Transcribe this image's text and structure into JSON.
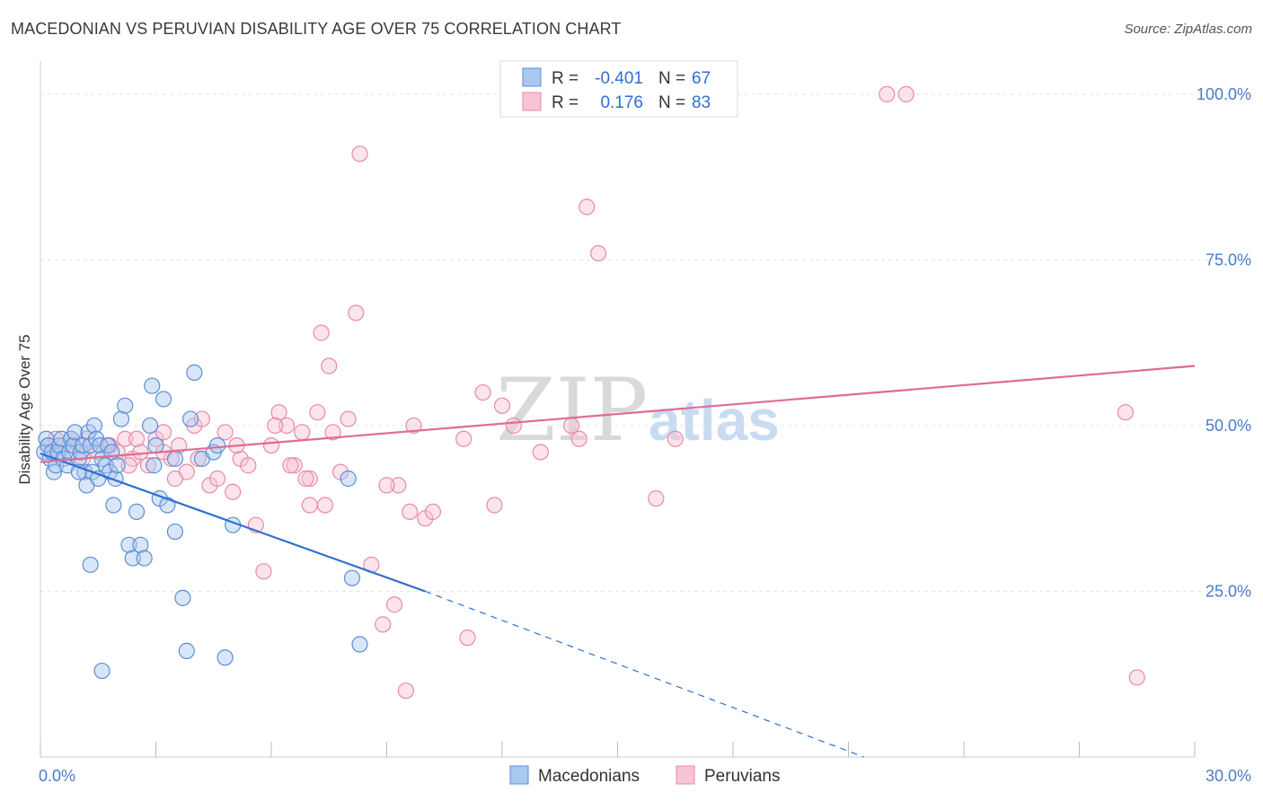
{
  "header": {
    "title": "MACEDONIAN VS PERUVIAN DISABILITY AGE OVER 75 CORRELATION CHART",
    "source": "Source: ZipAtlas.com"
  },
  "legend_box": {
    "rows": [
      {
        "r_label": "R =",
        "r_value": "-0.401",
        "n_label": "N =",
        "n_value": "67"
      },
      {
        "r_label": "R =",
        "r_value": "0.176",
        "n_label": "N =",
        "n_value": "83"
      }
    ]
  },
  "watermark": {
    "zip": "ZIP",
    "atlas": "atlas"
  },
  "colors": {
    "macedonian_fill": "#a9c8f0",
    "macedonian_stroke": "#5b8fd8",
    "macedonian_line": "#2e6fd1",
    "peruvian_fill": "#f7c4d4",
    "peruvian_stroke": "#e88aa8",
    "peruvian_line": "#e06b93",
    "tick_text": "#4a7cc7",
    "grid": "#e4e4e4"
  },
  "chart_data": {
    "type": "scatter",
    "title": "MACEDONIAN VS PERUVIAN DISABILITY AGE OVER 75 CORRELATION CHART",
    "xlabel": "",
    "ylabel": "Disability Age Over 75",
    "xlim": [
      0,
      30
    ],
    "ylim": [
      0,
      105
    ],
    "x_tick_labels": [
      "0.0%",
      "30.0%"
    ],
    "y_ticks": [
      25,
      50,
      75,
      100
    ],
    "y_tick_labels": [
      "25.0%",
      "50.0%",
      "75.0%",
      "100.0%"
    ],
    "grid": true,
    "legend_position": "bottom",
    "series": [
      {
        "name": "Macedonians",
        "points": [
          [
            0.1,
            46
          ],
          [
            0.15,
            48
          ],
          [
            0.2,
            47
          ],
          [
            0.25,
            45
          ],
          [
            0.3,
            46
          ],
          [
            0.35,
            43
          ],
          [
            0.4,
            44
          ],
          [
            0.45,
            46
          ],
          [
            0.5,
            47
          ],
          [
            0.55,
            48
          ],
          [
            0.6,
            45
          ],
          [
            0.7,
            44
          ],
          [
            0.75,
            46
          ],
          [
            0.8,
            48
          ],
          [
            0.85,
            47
          ],
          [
            0.9,
            49
          ],
          [
            1.0,
            45
          ],
          [
            1.05,
            46
          ],
          [
            1.1,
            47
          ],
          [
            1.15,
            43
          ],
          [
            1.2,
            41
          ],
          [
            1.25,
            49
          ],
          [
            1.3,
            47
          ],
          [
            1.35,
            43
          ],
          [
            1.4,
            50
          ],
          [
            1.45,
            48
          ],
          [
            1.5,
            42
          ],
          [
            1.55,
            47
          ],
          [
            1.6,
            45
          ],
          [
            1.7,
            44
          ],
          [
            1.75,
            47
          ],
          [
            1.8,
            43
          ],
          [
            1.85,
            46
          ],
          [
            1.9,
            38
          ],
          [
            1.95,
            42
          ],
          [
            2.0,
            44
          ],
          [
            2.1,
            51
          ],
          [
            2.2,
            53
          ],
          [
            2.3,
            32
          ],
          [
            2.4,
            30
          ],
          [
            2.5,
            37
          ],
          [
            2.6,
            32
          ],
          [
            2.7,
            30
          ],
          [
            2.85,
            50
          ],
          [
            2.9,
            56
          ],
          [
            2.95,
            44
          ],
          [
            3.0,
            47
          ],
          [
            3.1,
            39
          ],
          [
            3.2,
            54
          ],
          [
            3.3,
            38
          ],
          [
            3.5,
            34
          ],
          [
            3.7,
            24
          ],
          [
            3.8,
            16
          ],
          [
            3.9,
            51
          ],
          [
            4.0,
            58
          ],
          [
            4.2,
            45
          ],
          [
            4.5,
            46
          ],
          [
            4.6,
            47
          ],
          [
            4.8,
            15
          ],
          [
            5.0,
            35
          ],
          [
            1.0,
            43
          ],
          [
            1.6,
            13
          ],
          [
            1.3,
            29
          ],
          [
            8.0,
            42
          ],
          [
            8.1,
            27
          ],
          [
            8.3,
            17
          ],
          [
            3.5,
            45
          ]
        ]
      },
      {
        "name": "Peruvians",
        "points": [
          [
            0.2,
            47
          ],
          [
            0.4,
            48
          ],
          [
            0.6,
            47
          ],
          [
            0.8,
            48
          ],
          [
            1.0,
            47
          ],
          [
            1.2,
            48
          ],
          [
            1.5,
            46
          ],
          [
            1.8,
            47
          ],
          [
            2.0,
            46
          ],
          [
            2.2,
            48
          ],
          [
            2.4,
            45
          ],
          [
            2.6,
            46
          ],
          [
            2.8,
            44
          ],
          [
            3.0,
            48
          ],
          [
            3.2,
            49
          ],
          [
            3.4,
            45
          ],
          [
            3.6,
            47
          ],
          [
            3.8,
            43
          ],
          [
            4.0,
            50
          ],
          [
            4.2,
            51
          ],
          [
            4.4,
            41
          ],
          [
            4.6,
            42
          ],
          [
            4.8,
            49
          ],
          [
            5.0,
            40
          ],
          [
            5.2,
            45
          ],
          [
            5.4,
            44
          ],
          [
            5.6,
            35
          ],
          [
            5.8,
            28
          ],
          [
            6.0,
            47
          ],
          [
            6.2,
            52
          ],
          [
            6.4,
            50
          ],
          [
            6.6,
            44
          ],
          [
            6.8,
            49
          ],
          [
            7.0,
            42
          ],
          [
            7.2,
            52
          ],
          [
            7.4,
            38
          ],
          [
            7.6,
            49
          ],
          [
            7.8,
            43
          ],
          [
            8.0,
            51
          ],
          [
            7.5,
            59
          ],
          [
            7.3,
            64
          ],
          [
            8.2,
            67
          ],
          [
            8.3,
            91
          ],
          [
            8.6,
            29
          ],
          [
            8.9,
            20
          ],
          [
            9.2,
            23
          ],
          [
            9.6,
            37
          ],
          [
            10.0,
            36
          ],
          [
            9.3,
            41
          ],
          [
            9.5,
            10
          ],
          [
            9.7,
            50
          ],
          [
            11.0,
            48
          ],
          [
            11.5,
            55
          ],
          [
            11.8,
            38
          ],
          [
            12.0,
            53
          ],
          [
            13.0,
            46
          ],
          [
            13.8,
            50
          ],
          [
            14.0,
            48
          ],
          [
            14.2,
            83
          ],
          [
            14.5,
            76
          ],
          [
            16.0,
            39
          ],
          [
            16.5,
            48
          ],
          [
            22.5,
            100
          ],
          [
            22.0,
            100
          ],
          [
            28.2,
            52
          ],
          [
            28.5,
            12
          ],
          [
            2.5,
            48
          ],
          [
            3.2,
            46
          ],
          [
            4.1,
            45
          ],
          [
            6.5,
            44
          ],
          [
            7.0,
            38
          ],
          [
            3.5,
            42
          ],
          [
            2.3,
            44
          ],
          [
            1.8,
            47
          ],
          [
            0.5,
            46
          ],
          [
            1.1,
            45
          ],
          [
            5.1,
            47
          ],
          [
            6.1,
            50
          ],
          [
            9.0,
            41
          ],
          [
            10.2,
            37
          ],
          [
            11.1,
            18
          ],
          [
            12.3,
            50
          ],
          [
            6.9,
            42
          ]
        ]
      }
    ],
    "trend_lines": [
      {
        "series": "Macedonians",
        "solid": [
          [
            0,
            45.8
          ],
          [
            10,
            25
          ]
        ],
        "dashed": [
          [
            10,
            25
          ],
          [
            21.4,
            0
          ]
        ]
      },
      {
        "series": "Peruvians",
        "solid": [
          [
            0,
            44.5
          ],
          [
            30,
            59
          ]
        ]
      }
    ]
  }
}
